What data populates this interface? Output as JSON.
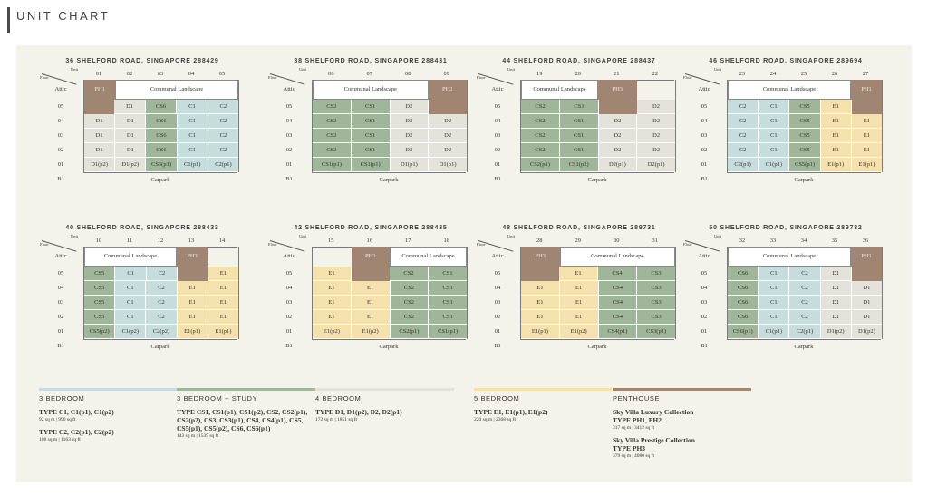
{
  "page_title": "UNIT CHART",
  "row_label_unit": "Unit",
  "row_label_floor": "Floor",
  "colors": {
    "blue": "#c7dcdc",
    "green": "#9fb69a",
    "grey": "#e5e2dc",
    "yellow": "#f4e1ae",
    "brown": "#a08672"
  },
  "buildings": [
    {
      "title": "36 SHELFORD ROAD, SINGAPORE 288429",
      "units": [
        "01",
        "02",
        "03",
        "04",
        "05"
      ],
      "attic": {
        "ph_left": "PH1",
        "communal": "Communal Landscape"
      },
      "rows": [
        [
          "05",
          "",
          [
            "D1",
            "grey"
          ],
          [
            "CS6",
            "green"
          ],
          [
            "C1",
            "blue"
          ],
          [
            "C2",
            "blue"
          ]
        ],
        [
          "04",
          [
            "D1",
            "grey"
          ],
          [
            "D1",
            "grey"
          ],
          [
            "CS6",
            "green"
          ],
          [
            "C1",
            "blue"
          ],
          [
            "C2",
            "blue"
          ]
        ],
        [
          "03",
          [
            "D1",
            "grey"
          ],
          [
            "D1",
            "grey"
          ],
          [
            "CS6",
            "green"
          ],
          [
            "C1",
            "blue"
          ],
          [
            "C2",
            "blue"
          ]
        ],
        [
          "02",
          [
            "D1",
            "grey"
          ],
          [
            "D1",
            "grey"
          ],
          [
            "CS6",
            "green"
          ],
          [
            "C1",
            "blue"
          ],
          [
            "C2",
            "blue"
          ]
        ],
        [
          "01",
          [
            "D1(p2)",
            "grey"
          ],
          [
            "D1(p2)",
            "grey"
          ],
          [
            "CS6(p1)",
            "green"
          ],
          [
            "C1(p1)",
            "blue"
          ],
          [
            "C2(p1)",
            "blue"
          ]
        ]
      ],
      "b1": "B1",
      "carpark": "Carpark"
    },
    {
      "title": "38 SHELFORD ROAD, SINGAPORE 288431",
      "units": [
        "06",
        "07",
        "08",
        "09"
      ],
      "attic": {
        "communal": "Communal Landscape",
        "ph_right": "PH2"
      },
      "rows": [
        [
          "05",
          [
            "CS2",
            "green"
          ],
          [
            "CS1",
            "green"
          ],
          [
            "D2",
            "grey"
          ],
          ""
        ],
        [
          "04",
          [
            "CS2",
            "green"
          ],
          [
            "CS1",
            "green"
          ],
          [
            "D2",
            "grey"
          ],
          [
            "D2",
            "grey"
          ]
        ],
        [
          "03",
          [
            "CS2",
            "green"
          ],
          [
            "CS1",
            "green"
          ],
          [
            "D2",
            "grey"
          ],
          [
            "D2",
            "grey"
          ]
        ],
        [
          "02",
          [
            "CS2",
            "green"
          ],
          [
            "CS1",
            "green"
          ],
          [
            "D2",
            "grey"
          ],
          [
            "D2",
            "grey"
          ]
        ],
        [
          "01",
          [
            "CS1(p1)",
            "green"
          ],
          [
            "CS1(p1)",
            "green"
          ],
          [
            "D1(p1)",
            "grey"
          ],
          [
            "D1(p1)",
            "grey"
          ]
        ]
      ],
      "b1": "B1",
      "carpark": "Carpark"
    },
    {
      "title": "44 SHELFORD ROAD, SINGAPORE 288437",
      "units": [
        "19",
        "20",
        "21",
        "22"
      ],
      "attic": {
        "communal": "Communal Landscape",
        "ph_mid": "PH3"
      },
      "rows": [
        [
          "05",
          [
            "CS2",
            "green"
          ],
          [
            "CS1",
            "green"
          ],
          "",
          [
            "D2",
            "grey"
          ]
        ],
        [
          "04",
          [
            "CS2",
            "green"
          ],
          [
            "CS1",
            "green"
          ],
          [
            "D2",
            "grey"
          ],
          [
            "D2",
            "grey"
          ]
        ],
        [
          "03",
          [
            "CS2",
            "green"
          ],
          [
            "CS1",
            "green"
          ],
          [
            "D2",
            "grey"
          ],
          [
            "D2",
            "grey"
          ]
        ],
        [
          "02",
          [
            "CS2",
            "green"
          ],
          [
            "CS1",
            "green"
          ],
          [
            "D2",
            "grey"
          ],
          [
            "D2",
            "grey"
          ]
        ],
        [
          "01",
          [
            "CS2(p1)",
            "green"
          ],
          [
            "CS1(p2)",
            "green"
          ],
          [
            "D2(p1)",
            "grey"
          ],
          [
            "D2(p1)",
            "grey"
          ]
        ]
      ],
      "b1": "B1",
      "carpark": "Carpark"
    },
    {
      "title": "46 SHELFORD ROAD, SINGAPORE 289694",
      "units": [
        "23",
        "24",
        "25",
        "26",
        "27"
      ],
      "attic": {
        "communal": "Communal Landscape",
        "ph_right": "PH1"
      },
      "rows": [
        [
          "05",
          [
            "C2",
            "blue"
          ],
          [
            "C1",
            "blue"
          ],
          [
            "CS5",
            "green"
          ],
          [
            "E1",
            "yellow"
          ],
          ""
        ],
        [
          "04",
          [
            "C2",
            "blue"
          ],
          [
            "C1",
            "blue"
          ],
          [
            "CS5",
            "green"
          ],
          [
            "E1",
            "yellow"
          ],
          [
            "E1",
            "yellow"
          ]
        ],
        [
          "03",
          [
            "C2",
            "blue"
          ],
          [
            "C1",
            "blue"
          ],
          [
            "CS5",
            "green"
          ],
          [
            "E1",
            "yellow"
          ],
          [
            "E1",
            "yellow"
          ]
        ],
        [
          "02",
          [
            "C2",
            "blue"
          ],
          [
            "C1",
            "blue"
          ],
          [
            "CS5",
            "green"
          ],
          [
            "E1",
            "yellow"
          ],
          [
            "E1",
            "yellow"
          ]
        ],
        [
          "01",
          [
            "C2(p1)",
            "blue"
          ],
          [
            "C1(p1)",
            "blue"
          ],
          [
            "CS5(p1)",
            "green"
          ],
          [
            "E1(p1)",
            "yellow"
          ],
          [
            "E1(p1)",
            "yellow"
          ]
        ]
      ],
      "b1": "B1",
      "carpark": "Carpark"
    },
    {
      "title": "40 SHELFORD ROAD, SINGAPORE 288433",
      "units": [
        "10",
        "11",
        "12",
        "13",
        "14"
      ],
      "attic": {
        "communal": "Communal Landscape",
        "ph_mid": "PH3"
      },
      "rows": [
        [
          "05",
          [
            "CS5",
            "green"
          ],
          [
            "C1",
            "blue"
          ],
          [
            "C2",
            "blue"
          ],
          "",
          [
            "E1",
            "yellow"
          ]
        ],
        [
          "04",
          [
            "CS5",
            "green"
          ],
          [
            "C1",
            "blue"
          ],
          [
            "C2",
            "blue"
          ],
          [
            "E1",
            "yellow"
          ],
          [
            "E1",
            "yellow"
          ]
        ],
        [
          "03",
          [
            "CS5",
            "green"
          ],
          [
            "C1",
            "blue"
          ],
          [
            "C2",
            "blue"
          ],
          [
            "E1",
            "yellow"
          ],
          [
            "E1",
            "yellow"
          ]
        ],
        [
          "02",
          [
            "CS5",
            "green"
          ],
          [
            "C1",
            "blue"
          ],
          [
            "C2",
            "blue"
          ],
          [
            "E1",
            "yellow"
          ],
          [
            "E1",
            "yellow"
          ]
        ],
        [
          "01",
          [
            "CS5(p2)",
            "green"
          ],
          [
            "C1(p2)",
            "blue"
          ],
          [
            "C2(p2)",
            "blue"
          ],
          [
            "E1(p1)",
            "yellow"
          ],
          [
            "E1(p1)",
            "yellow"
          ]
        ]
      ],
      "b1": "B1",
      "carpark": "Carpark"
    },
    {
      "title": "42 SHELFORD ROAD, SINGAPORE 288435",
      "units": [
        "15",
        "16",
        "17",
        "18"
      ],
      "attic": {
        "ph_mid": "PH3",
        "communal": "Communal Landscape"
      },
      "rows": [
        [
          "05",
          [
            "E1",
            "yellow"
          ],
          "",
          [
            "CS2",
            "green"
          ],
          [
            "CS1",
            "green"
          ]
        ],
        [
          "04",
          [
            "E1",
            "yellow"
          ],
          [
            "E1",
            "yellow"
          ],
          [
            "CS2",
            "green"
          ],
          [
            "CS1",
            "green"
          ]
        ],
        [
          "03",
          [
            "E1",
            "yellow"
          ],
          [
            "E1",
            "yellow"
          ],
          [
            "CS2",
            "green"
          ],
          [
            "CS1",
            "green"
          ]
        ],
        [
          "02",
          [
            "E1",
            "yellow"
          ],
          [
            "E1",
            "yellow"
          ],
          [
            "CS2",
            "green"
          ],
          [
            "CS1",
            "green"
          ]
        ],
        [
          "01",
          [
            "E1(p2)",
            "yellow"
          ],
          [
            "E1(p2)",
            "yellow"
          ],
          [
            "CS2(p1)",
            "green"
          ],
          [
            "CS1(p1)",
            "green"
          ]
        ]
      ],
      "b1": "B1",
      "carpark": "Carpark"
    },
    {
      "title": "48 SHELFORD ROAD, SINGAPORE 289731",
      "units": [
        "28",
        "29",
        "30",
        "31"
      ],
      "attic": {
        "ph_left": "PH3",
        "communal": "Communal Landscape"
      },
      "rows": [
        [
          "05",
          "",
          [
            "E1",
            "yellow"
          ],
          [
            "CS4",
            "green"
          ],
          [
            "CS3",
            "green"
          ]
        ],
        [
          "04",
          [
            "E1",
            "yellow"
          ],
          [
            "E1",
            "yellow"
          ],
          [
            "CS4",
            "green"
          ],
          [
            "CS3",
            "green"
          ]
        ],
        [
          "03",
          [
            "E1",
            "yellow"
          ],
          [
            "E1",
            "yellow"
          ],
          [
            "CS4",
            "green"
          ],
          [
            "CS3",
            "green"
          ]
        ],
        [
          "02",
          [
            "E1",
            "yellow"
          ],
          [
            "E1",
            "yellow"
          ],
          [
            "CS4",
            "green"
          ],
          [
            "CS3",
            "green"
          ]
        ],
        [
          "01",
          [
            "E1(p1)",
            "yellow"
          ],
          [
            "E1(p2)",
            "yellow"
          ],
          [
            "CS4(p1)",
            "green"
          ],
          [
            "CS3(p1)",
            "green"
          ]
        ]
      ],
      "b1": "B1",
      "carpark": "Carpark"
    },
    {
      "title": "50 SHELFORD ROAD, SINGAPORE 289732",
      "units": [
        "32",
        "33",
        "34",
        "35",
        "36"
      ],
      "attic": {
        "communal": "Communal Landscape",
        "ph_right": "PH1"
      },
      "rows": [
        [
          "05",
          [
            "CS6",
            "green"
          ],
          [
            "C1",
            "blue"
          ],
          [
            "C2",
            "blue"
          ],
          [
            "D1",
            "grey"
          ],
          ""
        ],
        [
          "04",
          [
            "CS6",
            "green"
          ],
          [
            "C1",
            "blue"
          ],
          [
            "C2",
            "blue"
          ],
          [
            "D1",
            "grey"
          ],
          [
            "D1",
            "grey"
          ]
        ],
        [
          "03",
          [
            "CS6",
            "green"
          ],
          [
            "C1",
            "blue"
          ],
          [
            "C2",
            "blue"
          ],
          [
            "D1",
            "grey"
          ],
          [
            "D1",
            "grey"
          ]
        ],
        [
          "02",
          [
            "CS6",
            "green"
          ],
          [
            "C1",
            "blue"
          ],
          [
            "C2",
            "blue"
          ],
          [
            "D1",
            "grey"
          ],
          [
            "D1",
            "grey"
          ]
        ],
        [
          "01",
          [
            "CS6(p1)",
            "green"
          ],
          [
            "C1(p1)",
            "blue"
          ],
          [
            "C2(p1)",
            "blue"
          ],
          [
            "D1(p2)",
            "grey"
          ],
          [
            "D1(p2)",
            "grey"
          ]
        ]
      ],
      "b1": "B1",
      "carpark": "Carpark"
    }
  ],
  "attic_label": "Attic",
  "legend": [
    {
      "head": "3 BEDROOM",
      "color": "blue",
      "entries": [
        {
          "type": "TYPE C1, C1(p1), C1(p2)",
          "size": "92 sq m | 990 sq ft"
        },
        {
          "type": "TYPE C2, C2(p1), C2(p2)",
          "size": "108 sq m | 1163 sq ft"
        }
      ]
    },
    {
      "head": "3 BEDROOM + STUDY",
      "color": "green",
      "entries": [
        {
          "type": "TYPE CS1, CS1(p1), CS1(p2), CS2, CS2(p1), CS2(p2), CS3, CS3(p1), CS4, CS4(p1), CS5, CS5(p1), CS5(p2), CS6, CS6(p1)",
          "size": "143 sq m | 1539 sq ft"
        }
      ]
    },
    {
      "head": "4 BEDROOM",
      "color": "grey",
      "entries": [
        {
          "type": "TYPE D1, D1(p2), D2, D2(p1)",
          "size": "172 sq m | 1851 sq ft"
        }
      ]
    },
    {
      "head": "5 BEDROOM",
      "color": "yellow",
      "entries": [
        {
          "type": "TYPE E1, E1(p1), E1(p2)",
          "size": "220 sq m | 2368 sq ft"
        }
      ]
    },
    {
      "head": "PENTHOUSE",
      "color": "brown",
      "entries": [
        {
          "type": "Sky Villa Luxury Collection",
          "size": ""
        },
        {
          "type": "TYPE PH1, PH2",
          "size": "317 sq m | 3412 sq ft"
        },
        {
          "type": "Sky Villa Prestige Collection",
          "size": ""
        },
        {
          "type": "TYPE PH3",
          "size": "379 sq m | 4080 sq ft"
        }
      ]
    }
  ]
}
